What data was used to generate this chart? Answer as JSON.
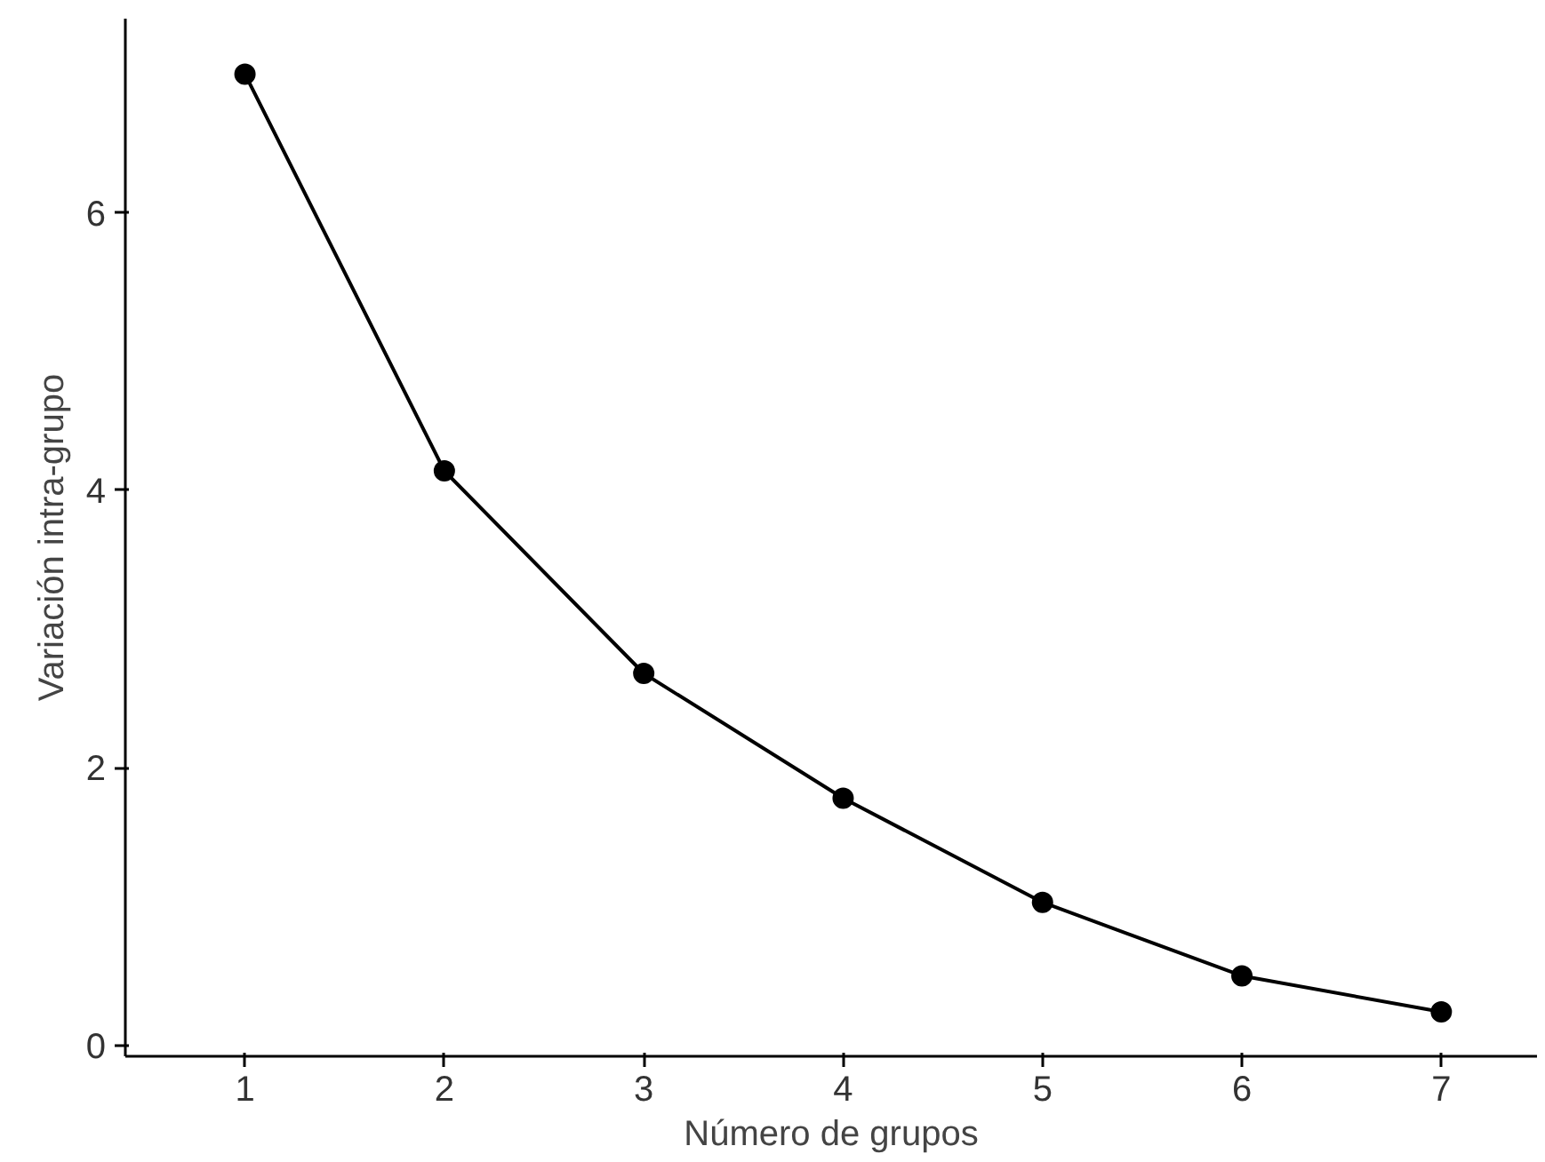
{
  "chart_data": {
    "type": "line",
    "xlabel": "Número de grupos",
    "ylabel": "Variación intra-grupo",
    "x": [
      1,
      2,
      3,
      4,
      5,
      6,
      7
    ],
    "series": [
      {
        "color": "#000000",
        "values": [
          7.0,
          4.14,
          2.68,
          1.78,
          1.03,
          0.5,
          0.24
        ]
      }
    ],
    "xlim": [
      0.4,
      7.48
    ],
    "ylim": [
      -0.08,
      7.4
    ],
    "xticks": [
      1,
      2,
      3,
      4,
      5,
      6,
      7
    ],
    "yticks": [
      0,
      2,
      4,
      6
    ],
    "grid": false,
    "marker": "circle",
    "line_style": "solid"
  }
}
